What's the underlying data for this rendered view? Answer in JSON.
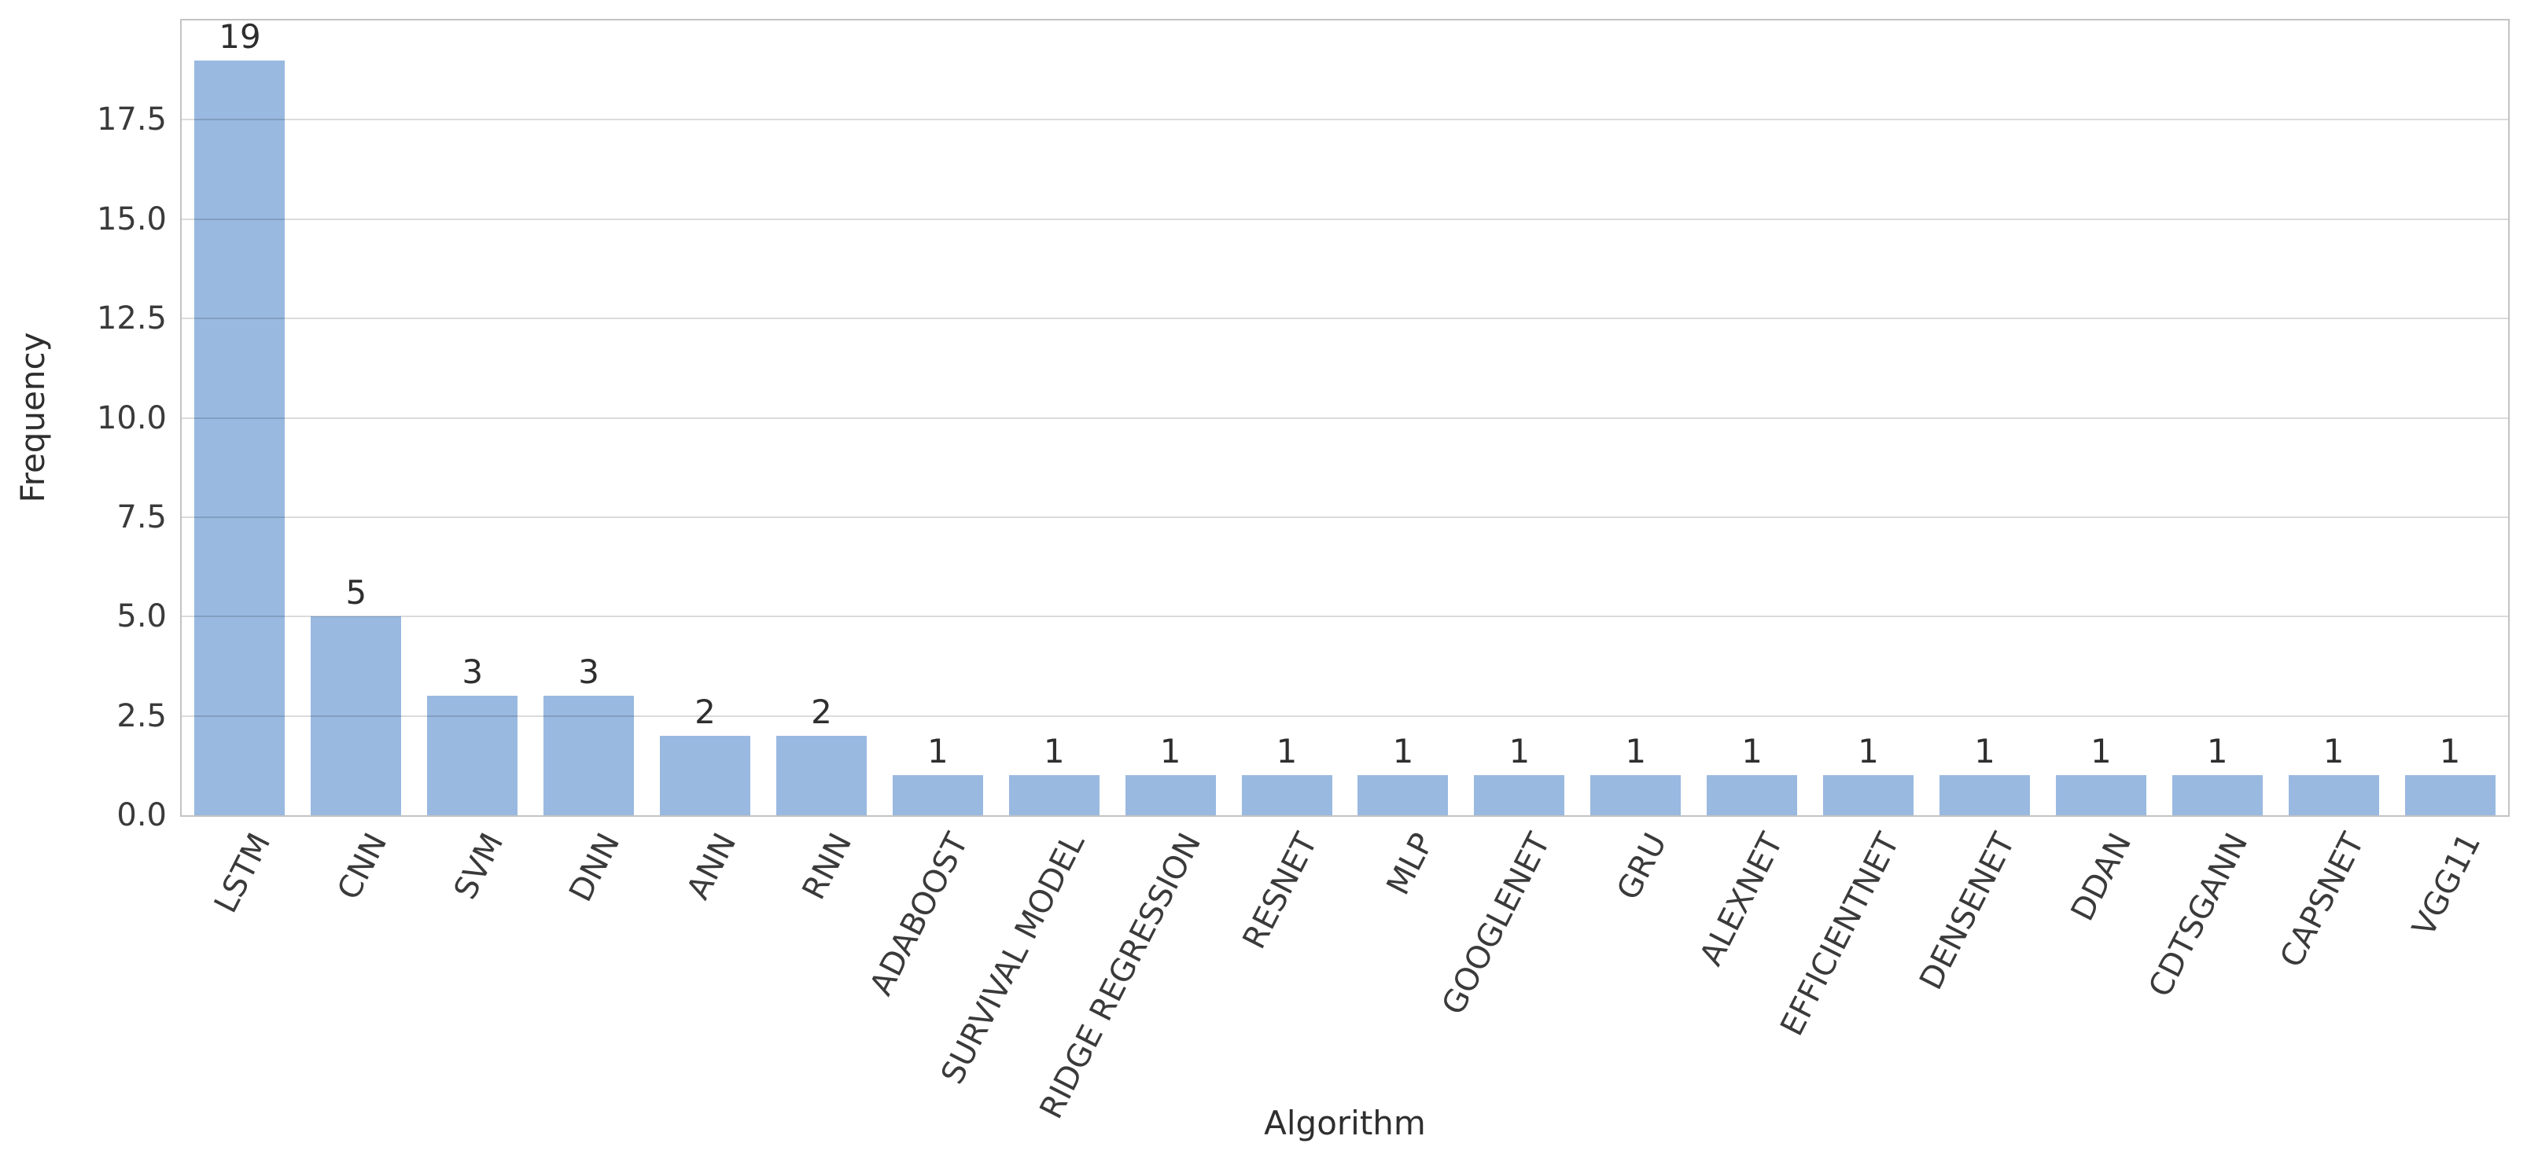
{
  "figure": {
    "title": "",
    "xlabel": "Algorithm",
    "ylabel": "Frequency"
  },
  "chart_data": {
    "type": "bar",
    "title": "",
    "xlabel": "Algorithm",
    "ylabel": "Frequency",
    "categories": [
      "LSTM",
      "CNN",
      "SVM",
      "DNN",
      "ANN",
      "RNN",
      "ADABOOST",
      "SURVIVAL MODEL",
      "RIDGE REGRESSION",
      "RESNET",
      "MLP",
      "GOOGLENET",
      "GRU",
      "ALEXNET",
      "EFFICIENTNET",
      "DENSENET",
      "DDAN",
      "CDTSGANN",
      "CAPSNET",
      "VGG11"
    ],
    "values": [
      19,
      5,
      3,
      3,
      2,
      2,
      1,
      1,
      1,
      1,
      1,
      1,
      1,
      1,
      1,
      1,
      1,
      1,
      1,
      1
    ],
    "bar_labels": [
      "19",
      "5",
      "3",
      "3",
      "2",
      "2",
      "1",
      "1",
      "1",
      "1",
      "1",
      "1",
      "1",
      "1",
      "1",
      "1",
      "1",
      "1",
      "1",
      "1"
    ],
    "ylim": [
      0,
      20
    ],
    "yticks": [
      0.0,
      2.5,
      5.0,
      7.5,
      10.0,
      12.5,
      15.0,
      17.5
    ],
    "ytick_labels": [
      "0.0",
      "2.5",
      "5.0",
      "7.5",
      "10.0",
      "12.5",
      "15.0",
      "17.5"
    ],
    "grid": true,
    "grid_axis": "y",
    "legend_position": "none",
    "x_tick_rotation_deg": 63,
    "colors": {
      "bar": "#99b9e0",
      "grid": "#dcdcdc",
      "spine": "#c3c3c3",
      "text": "#2e2e2e",
      "background": "#ffffff"
    }
  }
}
